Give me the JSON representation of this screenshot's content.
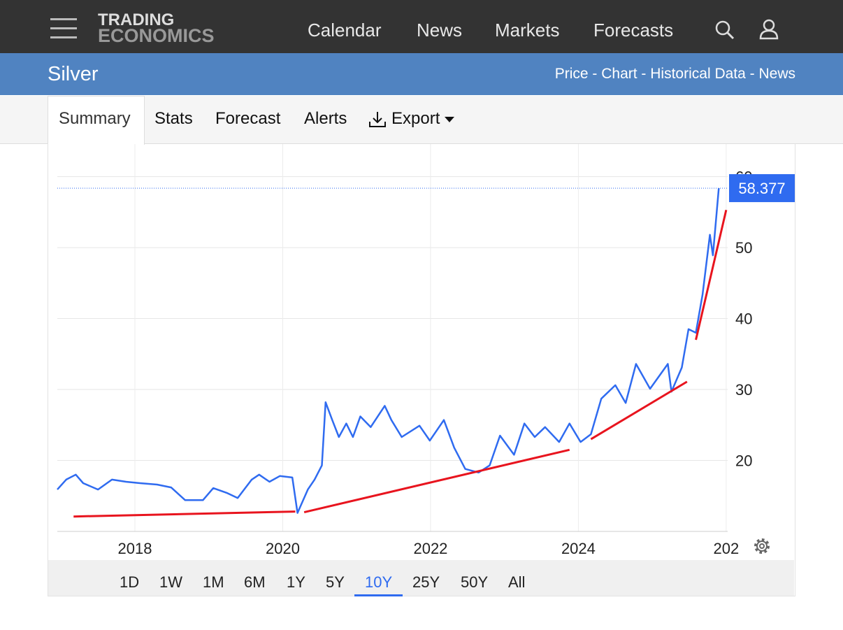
{
  "logo": {
    "line1": "TRADING",
    "line2": "ECONOMICS"
  },
  "nav": [
    "Calendar",
    "News",
    "Markets",
    "Forecasts"
  ],
  "page_title": "Silver",
  "breadcrumbs": [
    "Price",
    "Chart",
    "Historical Data",
    "News"
  ],
  "tabs": [
    "Summary",
    "Stats",
    "Forecast",
    "Alerts",
    "Export"
  ],
  "ranges": [
    "1D",
    "1W",
    "1M",
    "6M",
    "1Y",
    "5Y",
    "10Y",
    "25Y",
    "50Y",
    "All"
  ],
  "active_range": "10Y",
  "chart_data": {
    "type": "line",
    "x": [
      2016.95,
      2017.07,
      2017.2,
      2017.3,
      2017.5,
      2017.69,
      2017.88,
      2018.07,
      2018.3,
      2018.49,
      2018.68,
      2018.92,
      2019.06,
      2019.25,
      2019.39,
      2019.58,
      2019.68,
      2019.82,
      2019.96,
      2020.13,
      2020.2,
      2020.34,
      2020.43,
      2020.53,
      2020.58,
      2020.67,
      2020.76,
      2020.86,
      2020.95,
      2021.05,
      2021.19,
      2021.38,
      2021.47,
      2021.61,
      2021.85,
      2021.99,
      2022.18,
      2022.32,
      2022.47,
      2022.65,
      2022.8,
      2022.94,
      2023.13,
      2023.27,
      2023.41,
      2023.55,
      2023.74,
      2023.88,
      2024.03,
      2024.17,
      2024.31,
      2024.5,
      2024.64,
      2024.78,
      2024.97,
      2025.21,
      2025.26,
      2025.4,
      2025.49,
      2025.59,
      2025.68,
      2025.78,
      2025.82,
      2025.9
    ],
    "series": [
      {
        "name": "Silver",
        "color": "#2f6bf0",
        "values": [
          15.9,
          17.3,
          18.0,
          16.8,
          15.9,
          17.3,
          17.0,
          16.8,
          16.6,
          16.2,
          14.4,
          14.4,
          16.1,
          15.4,
          14.7,
          17.3,
          18.0,
          17.0,
          17.8,
          17.6,
          12.6,
          15.9,
          17.3,
          19.3,
          28.2,
          25.7,
          23.3,
          25.2,
          23.3,
          26.2,
          24.7,
          27.7,
          25.7,
          23.3,
          24.9,
          22.8,
          25.7,
          21.8,
          18.8,
          18.3,
          19.3,
          23.5,
          20.8,
          25.2,
          23.3,
          24.7,
          22.6,
          25.2,
          22.6,
          23.7,
          28.7,
          30.6,
          28.1,
          33.6,
          30.1,
          33.6,
          29.7,
          33.1,
          38.5,
          38.0,
          43.4,
          51.8,
          48.9,
          58.377
        ]
      }
    ],
    "last_value": 58.377,
    "trendlines": [
      {
        "color": "#e8141e",
        "x": [
          2017.17,
          2020.17
        ],
        "y": [
          12.1,
          12.8
        ]
      },
      {
        "color": "#e8141e",
        "x": [
          2020.29,
          2023.88
        ],
        "y": [
          12.7,
          21.5
        ]
      },
      {
        "color": "#e8141e",
        "x": [
          2024.17,
          2025.47
        ],
        "y": [
          23.0,
          31.1
        ]
      },
      {
        "color": "#e8141e",
        "x": [
          2025.59,
          2026.0
        ],
        "y": [
          37.0,
          55.3
        ]
      }
    ],
    "xlim": [
      2016.95,
      2026.02
    ],
    "xticks": [
      2018,
      2020,
      2022,
      2024,
      {
        "value": 2026,
        "label": "202"
      }
    ],
    "ylim": [
      10,
      64
    ],
    "yticks": [
      20,
      30,
      40,
      50,
      60
    ],
    "grid": true
  }
}
